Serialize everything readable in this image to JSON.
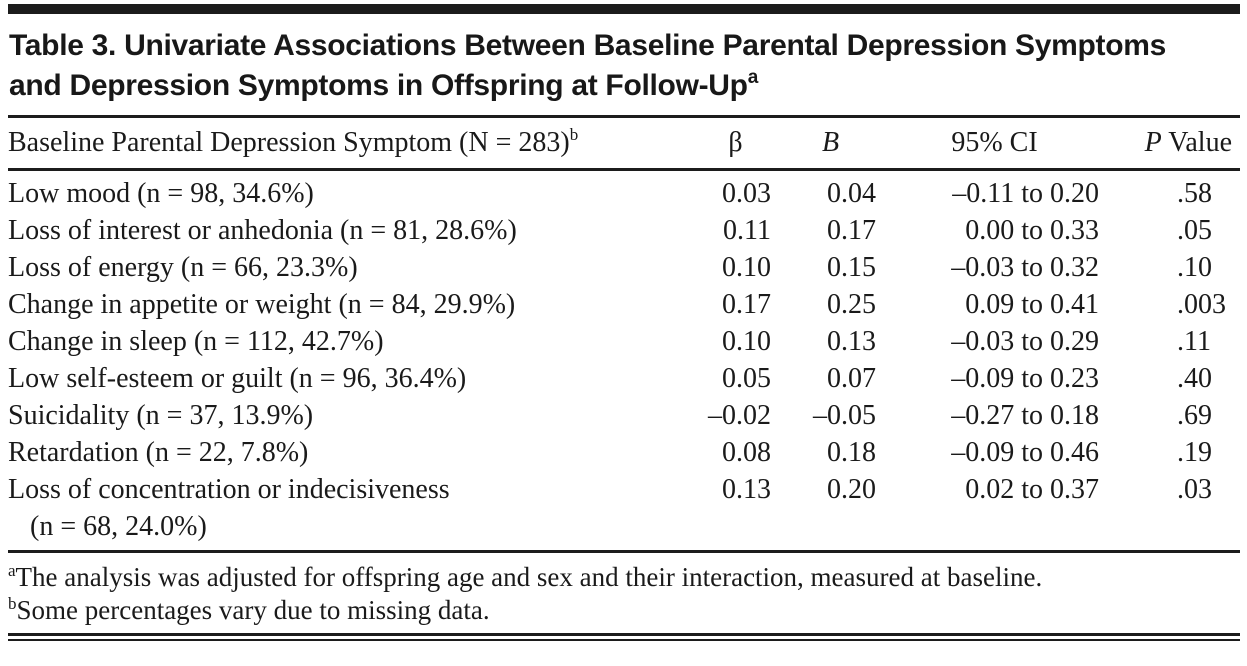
{
  "title": {
    "text": "Table 3. Univariate Associations Between Baseline Parental Depression Symptoms and Depression Symptoms in Offspring at Follow-Up",
    "superscript": "a"
  },
  "table": {
    "columns": [
      {
        "label": "Baseline Parental Depression Symptom (N = 283)",
        "superscript": "b"
      },
      {
        "label": "β"
      },
      {
        "label": "B"
      },
      {
        "label": "95% CI"
      },
      {
        "italic": "P",
        "rest": " Value"
      }
    ],
    "rows": [
      {
        "symptom": "Low mood (n = 98, 34.6%)",
        "beta": "0.03",
        "b": "0.04",
        "ci": "–0.11 to 0.20",
        "p": ".58"
      },
      {
        "symptom": "Loss of interest or anhedonia (n = 81, 28.6%)",
        "beta": "0.11",
        "b": "0.17",
        "ci": "0.00 to 0.33",
        "p": ".05"
      },
      {
        "symptom": "Loss of energy (n = 66, 23.3%)",
        "beta": "0.10",
        "b": "0.15",
        "ci": "–0.03 to 0.32",
        "p": ".10"
      },
      {
        "symptom": "Change in appetite or weight (n = 84, 29.9%)",
        "beta": "0.17",
        "b": "0.25",
        "ci": "0.09 to 0.41",
        "p": ".003"
      },
      {
        "symptom": "Change in sleep (n = 112, 42.7%)",
        "beta": "0.10",
        "b": "0.13",
        "ci": "–0.03 to 0.29",
        "p": ".11"
      },
      {
        "symptom": "Low self-esteem or guilt (n = 96, 36.4%)",
        "beta": "0.05",
        "b": "0.07",
        "ci": "–0.09 to 0.23",
        "p": ".40"
      },
      {
        "symptom": "Suicidality (n = 37, 13.9%)",
        "beta": "–0.02",
        "b": "–0.05",
        "ci": "–0.27 to 0.18",
        "p": ".69"
      },
      {
        "symptom": "Retardation (n = 22, 7.8%)",
        "beta": "0.08",
        "b": "0.18",
        "ci": "–0.09 to 0.46",
        "p": ".19"
      },
      {
        "symptom": "Loss of concentration or indecisiveness",
        "symptom_line2": "(n = 68, 24.0%)",
        "beta": "0.13",
        "b": "0.20",
        "ci": "0.02 to 0.37",
        "p": ".03"
      }
    ]
  },
  "footnotes": [
    {
      "marker": "a",
      "text": "The analysis was adjusted for offspring age and sex and their interaction, measured at baseline."
    },
    {
      "marker": "b",
      "text": "Some percentages vary due to missing data."
    }
  ],
  "colors": {
    "background": "#ffffff",
    "text": "#1a1a1a",
    "rule": "#1c1c1c"
  }
}
